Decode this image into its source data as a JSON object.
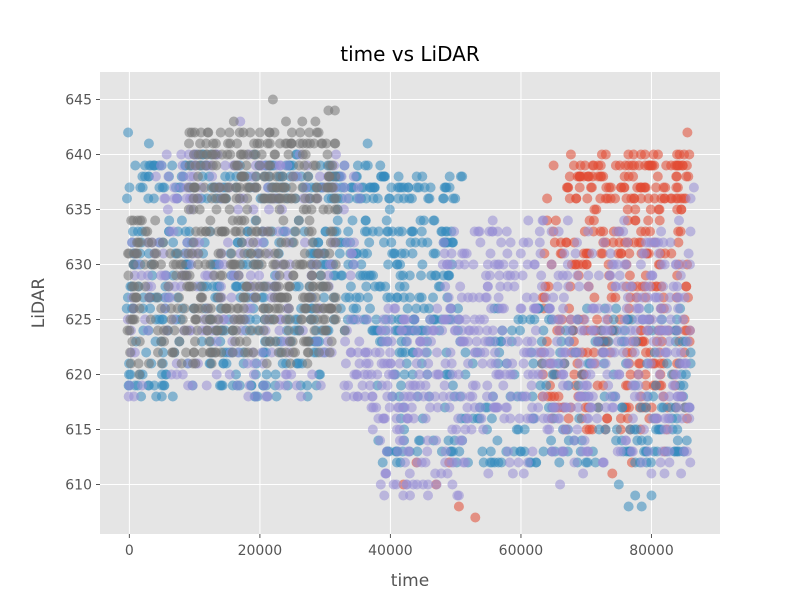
{
  "chart_data": {
    "type": "scatter",
    "title": "time vs LiDAR",
    "xlabel": "time",
    "ylabel": "LiDAR",
    "xlim": [
      -4500,
      90500
    ],
    "ylim": [
      605.5,
      647.5
    ],
    "x_ticks": [
      0,
      20000,
      40000,
      60000,
      80000
    ],
    "x_tick_labels": [
      "0",
      "20000",
      "40000",
      "60000",
      "80000"
    ],
    "y_ticks": [
      610,
      615,
      620,
      625,
      630,
      635,
      640,
      645
    ],
    "y_tick_labels": [
      "610",
      "615",
      "620",
      "625",
      "630",
      "635",
      "640",
      "645"
    ],
    "grid": true,
    "legend": "none",
    "style": "ggplot",
    "series": [
      {
        "color": "#E24A33",
        "blocks": [
          {
            "x0": 63000,
            "x1": 86000,
            "y0": 615,
            "y1": 634,
            "density": 260
          },
          {
            "x0": 67000,
            "x1": 86000,
            "y0": 635,
            "y1": 640,
            "density": 120
          }
        ],
        "points": [
          [
            65000,
            639
          ],
          [
            69000,
            637
          ],
          [
            71000,
            639
          ],
          [
            73000,
            640
          ],
          [
            76000,
            639
          ],
          [
            79000,
            640
          ],
          [
            81000,
            640
          ],
          [
            83000,
            639
          ],
          [
            85000,
            640
          ],
          [
            85500,
            642
          ],
          [
            42000,
            610
          ],
          [
            47000,
            610
          ],
          [
            53000,
            607
          ],
          [
            50500,
            608
          ],
          [
            49000,
            612
          ],
          [
            44000,
            612
          ],
          [
            74000,
            611
          ],
          [
            77000,
            612
          ],
          [
            82000,
            613
          ],
          [
            64000,
            636
          ]
        ]
      },
      {
        "color": "#348ABD",
        "blocks": [
          {
            "x0": -500,
            "x1": 31000,
            "y0": 618,
            "y1": 634,
            "density": 280
          },
          {
            "x0": -500,
            "x1": 31000,
            "y0": 636,
            "y1": 640,
            "density": 120
          },
          {
            "x0": 31000,
            "x1": 50000,
            "y0": 624,
            "y1": 634,
            "density": 160
          },
          {
            "x0": 31000,
            "x1": 40000,
            "y0": 635,
            "y1": 639,
            "density": 50
          },
          {
            "x0": 40000,
            "x1": 51000,
            "y0": 636,
            "y1": 638,
            "density": 30
          },
          {
            "x0": 38000,
            "x1": 86000,
            "y0": 613,
            "y1": 626,
            "density": 240
          },
          {
            "x0": 38000,
            "x1": 86000,
            "y0": 612,
            "y1": 613,
            "density": 60
          }
        ],
        "points": [
          [
            -200,
            642
          ],
          [
            3000,
            641
          ],
          [
            2000,
            638
          ],
          [
            36500,
            641
          ],
          [
            19500,
            621
          ],
          [
            23500,
            621
          ],
          [
            51000,
            638
          ],
          [
            75000,
            610
          ],
          [
            76500,
            608
          ],
          [
            78500,
            608
          ],
          [
            80000,
            609
          ],
          [
            77500,
            609
          ],
          [
            86000,
            622
          ],
          [
            86000,
            621
          ],
          [
            41000,
            613
          ]
        ]
      },
      {
        "color": "#988ED5",
        "blocks": [
          {
            "x0": -500,
            "x1": 36000,
            "y0": 618,
            "y1": 633,
            "density": 200
          },
          {
            "x0": 4000,
            "x1": 36000,
            "y0": 635,
            "y1": 640,
            "density": 90
          },
          {
            "x0": 36000,
            "x1": 86000,
            "y0": 615,
            "y1": 626,
            "density": 420
          },
          {
            "x0": 48000,
            "x1": 86000,
            "y0": 626,
            "y1": 634,
            "density": 170
          },
          {
            "x0": 38000,
            "x1": 52000,
            "y0": 609,
            "y1": 614,
            "density": 40
          },
          {
            "x0": 58000,
            "x1": 86000,
            "y0": 611,
            "y1": 614,
            "density": 40
          }
        ],
        "points": [
          [
            -100,
            618
          ],
          [
            700,
            618
          ],
          [
            9000,
            619
          ],
          [
            17000,
            643
          ],
          [
            31000,
            622
          ],
          [
            34000,
            622
          ],
          [
            39000,
            616
          ],
          [
            43000,
            609
          ],
          [
            45000,
            610
          ],
          [
            49500,
            610
          ],
          [
            50500,
            609
          ],
          [
            55000,
            611
          ],
          [
            58000,
            613
          ],
          [
            66000,
            610
          ],
          [
            86500,
            637
          ],
          [
            86000,
            636
          ],
          [
            63000,
            631
          ],
          [
            47000,
            614
          ],
          [
            51000,
            614
          ],
          [
            82000,
            611
          ]
        ]
      },
      {
        "color": "#777777",
        "blocks": [
          {
            "x0": -500,
            "x1": 32000,
            "y0": 621,
            "y1": 634,
            "density": 300
          },
          {
            "x0": 9000,
            "x1": 32000,
            "y0": 635,
            "y1": 642,
            "density": 190
          },
          {
            "x0": 10000,
            "x1": 32000,
            "y0": 624,
            "y1": 628,
            "density": 60
          }
        ],
        "points": [
          [
            22000,
            645
          ],
          [
            30500,
            644
          ],
          [
            31500,
            644
          ],
          [
            16000,
            643
          ],
          [
            24000,
            643
          ],
          [
            26500,
            643
          ],
          [
            28500,
            643
          ],
          [
            29000,
            642
          ],
          [
            20000,
            642
          ],
          [
            12000,
            642
          ],
          [
            14000,
            642
          ],
          [
            31000,
            623
          ],
          [
            33000,
            624
          ],
          [
            1500,
            620
          ],
          [
            3000,
            621
          ]
        ]
      }
    ]
  }
}
